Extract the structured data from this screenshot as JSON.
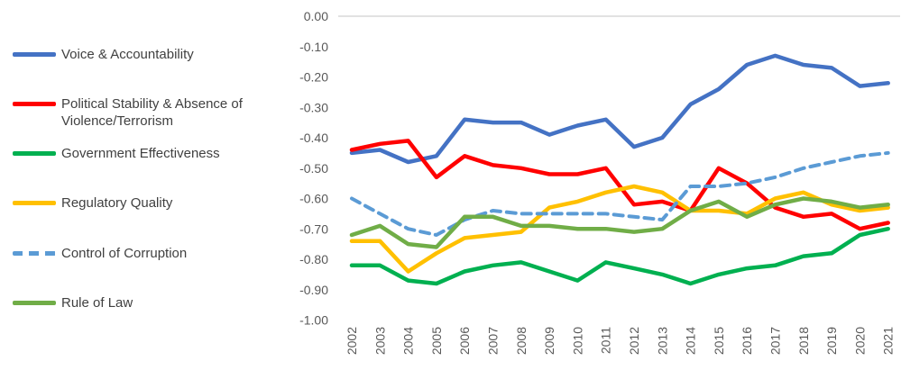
{
  "chart_data": {
    "type": "line",
    "title": "",
    "xlabel": "",
    "ylabel": "",
    "x": [
      "2002",
      "2003",
      "2004",
      "2005",
      "2006",
      "2007",
      "2008",
      "2009",
      "2010",
      "2011",
      "2012",
      "2013",
      "2014",
      "2015",
      "2016",
      "2017",
      "2018",
      "2019",
      "2020",
      "2021"
    ],
    "ylim": [
      -1.0,
      0.0
    ],
    "ytick_labels": [
      "0.00",
      "-0.10",
      "-0.20",
      "-0.30",
      "-0.40",
      "-0.50",
      "-0.60",
      "-0.70",
      "-0.80",
      "-0.90",
      "-1.00"
    ],
    "grid": "top-line-only",
    "legend_position": "left",
    "series": [
      {
        "name": "Voice & Accountability",
        "color": "#4472C4",
        "dash": null,
        "values": [
          -0.45,
          -0.44,
          -0.48,
          -0.46,
          -0.34,
          -0.35,
          -0.35,
          -0.39,
          -0.36,
          -0.34,
          -0.43,
          -0.4,
          -0.29,
          -0.24,
          -0.16,
          -0.13,
          -0.16,
          -0.17,
          -0.23,
          -0.22
        ]
      },
      {
        "name": "Political Stability & Absence of Violence/Terrorism",
        "color": "#FF0000",
        "dash": null,
        "values": [
          -0.44,
          -0.42,
          -0.41,
          -0.53,
          -0.46,
          -0.49,
          -0.5,
          -0.52,
          -0.52,
          -0.5,
          -0.62,
          -0.61,
          -0.64,
          -0.5,
          -0.55,
          -0.63,
          -0.66,
          -0.65,
          -0.7,
          -0.68
        ]
      },
      {
        "name": "Government Effectiveness",
        "color": "#00B050",
        "dash": null,
        "values": [
          -0.82,
          -0.82,
          -0.87,
          -0.88,
          -0.84,
          -0.82,
          -0.81,
          -0.84,
          -0.87,
          -0.81,
          -0.83,
          -0.85,
          -0.88,
          -0.85,
          -0.83,
          -0.82,
          -0.79,
          -0.78,
          -0.72,
          -0.7
        ]
      },
      {
        "name": "Regulatory Quality",
        "color": "#FFC000",
        "dash": null,
        "values": [
          -0.74,
          -0.74,
          -0.84,
          -0.78,
          -0.73,
          -0.72,
          -0.71,
          -0.63,
          -0.61,
          -0.58,
          -0.56,
          -0.58,
          -0.64,
          -0.64,
          -0.65,
          -0.6,
          -0.58,
          -0.62,
          -0.64,
          -0.63
        ]
      },
      {
        "name": "Control of Corruption",
        "color": "#5B9BD5",
        "dash": "10 7",
        "values": [
          -0.6,
          -0.65,
          -0.7,
          -0.72,
          -0.67,
          -0.64,
          -0.65,
          -0.65,
          -0.65,
          -0.65,
          -0.66,
          -0.67,
          -0.56,
          -0.56,
          -0.55,
          -0.53,
          -0.5,
          -0.48,
          -0.46,
          -0.45
        ]
      },
      {
        "name": "Rule of Law",
        "color": "#70AD47",
        "dash": null,
        "values": [
          -0.72,
          -0.69,
          -0.75,
          -0.76,
          -0.66,
          -0.66,
          -0.69,
          -0.69,
          -0.7,
          -0.7,
          -0.71,
          -0.7,
          -0.64,
          -0.61,
          -0.66,
          -0.62,
          -0.6,
          -0.61,
          -0.63,
          -0.62
        ]
      }
    ],
    "style": {
      "axis_text_color": "#595959",
      "gridline_color": "#D9D9D9",
      "legend_text_color": "#404040"
    }
  }
}
